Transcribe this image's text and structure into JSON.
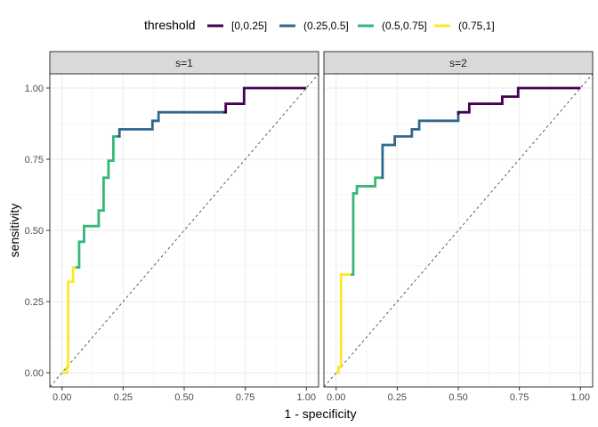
{
  "chart_data": {
    "type": "line",
    "xlabel": "1 - specificity",
    "ylabel": "sensitivity",
    "xlim": [
      -0.05,
      1.05
    ],
    "ylim": [
      -0.05,
      1.05
    ],
    "x_ticks": [
      "0.00",
      "0.25",
      "0.50",
      "0.75",
      "1.00"
    ],
    "y_ticks": [
      "0.00",
      "0.25",
      "0.50",
      "0.75",
      "1.00"
    ],
    "grid": true,
    "reference_line": {
      "from": [
        0,
        0
      ],
      "to": [
        1,
        1
      ],
      "style": "dashed"
    },
    "legend": {
      "title": "threshold",
      "position": "top",
      "items": [
        {
          "label": "[0,0.25]",
          "color": "#440154"
        },
        {
          "label": "(0.25,0.5]",
          "color": "#31688e"
        },
        {
          "label": "(0.5,0.75]",
          "color": "#35b779"
        },
        {
          "label": "(0.75,1]",
          "color": "#fde725"
        }
      ]
    },
    "panels": [
      {
        "strip": "s=1",
        "series": [
          {
            "threshold": "(0.75,1]",
            "points": [
              [
                0,
                0
              ],
              [
                0.02,
                0
              ],
              [
                0.02,
                0.02
              ],
              [
                0.025,
                0.02
              ],
              [
                0.025,
                0.32
              ],
              [
                0.045,
                0.32
              ],
              [
                0.045,
                0.37
              ],
              [
                0.055,
                0.37
              ]
            ]
          },
          {
            "threshold": "(0.5,0.75]",
            "points": [
              [
                0.055,
                0.37
              ],
              [
                0.07,
                0.37
              ],
              [
                0.07,
                0.46
              ],
              [
                0.09,
                0.46
              ],
              [
                0.09,
                0.515
              ],
              [
                0.15,
                0.515
              ],
              [
                0.15,
                0.57
              ],
              [
                0.17,
                0.57
              ],
              [
                0.17,
                0.685
              ],
              [
                0.19,
                0.685
              ],
              [
                0.19,
                0.745
              ],
              [
                0.21,
                0.745
              ],
              [
                0.21,
                0.83
              ],
              [
                0.225,
                0.83
              ]
            ]
          },
          {
            "threshold": "(0.25,0.5]",
            "points": [
              [
                0.225,
                0.83
              ],
              [
                0.235,
                0.83
              ],
              [
                0.235,
                0.855
              ],
              [
                0.37,
                0.855
              ],
              [
                0.37,
                0.885
              ],
              [
                0.395,
                0.885
              ],
              [
                0.395,
                0.915
              ],
              [
                0.66,
                0.915
              ]
            ]
          },
          {
            "threshold": "[0,0.25]",
            "points": [
              [
                0.66,
                0.915
              ],
              [
                0.67,
                0.915
              ],
              [
                0.67,
                0.945
              ],
              [
                0.745,
                0.945
              ],
              [
                0.745,
                1.0
              ],
              [
                1.0,
                1.0
              ]
            ]
          }
        ]
      },
      {
        "strip": "s=2",
        "series": [
          {
            "threshold": "(0.75,1]",
            "points": [
              [
                0,
                0
              ],
              [
                0.01,
                0
              ],
              [
                0.01,
                0.02
              ],
              [
                0.02,
                0.02
              ],
              [
                0.02,
                0.345
              ],
              [
                0.06,
                0.345
              ]
            ]
          },
          {
            "threshold": "(0.5,0.75]",
            "points": [
              [
                0.06,
                0.345
              ],
              [
                0.07,
                0.345
              ],
              [
                0.07,
                0.63
              ],
              [
                0.085,
                0.63
              ],
              [
                0.085,
                0.655
              ],
              [
                0.16,
                0.655
              ],
              [
                0.16,
                0.685
              ],
              [
                0.185,
                0.685
              ]
            ]
          },
          {
            "threshold": "(0.25,0.5]",
            "points": [
              [
                0.185,
                0.685
              ],
              [
                0.19,
                0.685
              ],
              [
                0.19,
                0.8
              ],
              [
                0.24,
                0.8
              ],
              [
                0.24,
                0.83
              ],
              [
                0.31,
                0.83
              ],
              [
                0.31,
                0.855
              ],
              [
                0.34,
                0.855
              ],
              [
                0.34,
                0.885
              ],
              [
                0.5,
                0.885
              ],
              [
                0.5,
                0.905
              ]
            ]
          },
          {
            "threshold": "[0,0.25]",
            "points": [
              [
                0.5,
                0.905
              ],
              [
                0.5,
                0.915
              ],
              [
                0.545,
                0.915
              ],
              [
                0.545,
                0.945
              ],
              [
                0.68,
                0.945
              ],
              [
                0.68,
                0.97
              ],
              [
                0.745,
                0.97
              ],
              [
                0.745,
                1.0
              ],
              [
                1.0,
                1.0
              ]
            ]
          }
        ]
      }
    ]
  }
}
